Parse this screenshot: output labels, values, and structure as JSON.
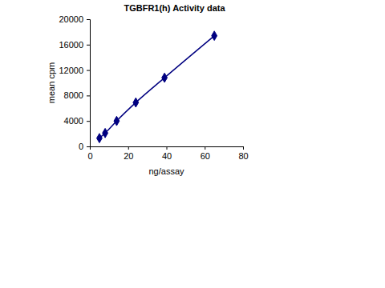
{
  "chart_data": {
    "type": "line",
    "title": "TGBFR1(h) Activity data",
    "x_label": "ng/assay",
    "y_label": "mean cpm",
    "x": [
      5,
      8,
      14,
      24,
      39,
      65
    ],
    "values": [
      1300,
      2100,
      4000,
      6900,
      10800,
      17400
    ],
    "color": "#000080",
    "marker": "diamond",
    "grid": false,
    "xlim": [
      0,
      80
    ],
    "xticks": [
      0,
      20,
      40,
      60,
      80
    ],
    "ylim": [
      0,
      20000
    ],
    "yticks": [
      0,
      4000,
      8000,
      12000,
      16000,
      20000
    ]
  }
}
